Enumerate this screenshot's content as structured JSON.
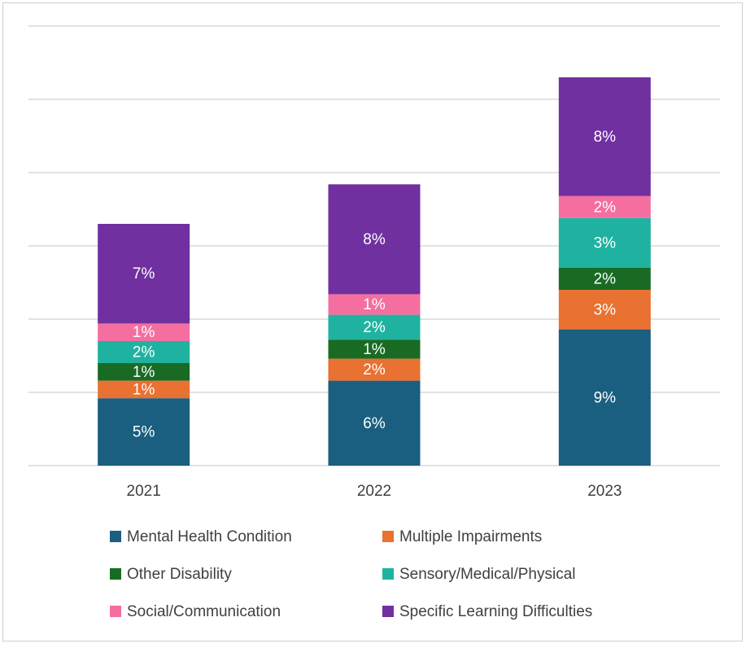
{
  "chart_data": {
    "type": "stacked_bar",
    "categories": [
      "2021",
      "2022",
      "2023"
    ],
    "series": [
      {
        "name": "Mental Health Condition",
        "color": "#1a5e80",
        "values": [
          4.6,
          5.8,
          9.3
        ],
        "value_labels": [
          "5%",
          "6%",
          "9%"
        ]
      },
      {
        "name": "Multiple Impairments",
        "color": "#e97132",
        "values": [
          1.2,
          1.5,
          2.7
        ],
        "value_labels": [
          "1%",
          "2%",
          "3%"
        ]
      },
      {
        "name": "Other Disability",
        "color": "#196b24",
        "values": [
          1.2,
          1.3,
          1.5
        ],
        "value_labels": [
          "1%",
          "1%",
          "2%"
        ]
      },
      {
        "name": "Sensory/Medical/Physical",
        "color": "#20b2a0",
        "values": [
          1.5,
          1.7,
          3.4
        ],
        "value_labels": [
          "2%",
          "2%",
          "3%"
        ]
      },
      {
        "name": "Social/Communication",
        "color": "#f46fa0",
        "values": [
          1.2,
          1.4,
          1.5
        ],
        "value_labels": [
          "1%",
          "1%",
          "2%"
        ]
      },
      {
        "name": "Specific Learning Difficulties",
        "color": "#7030a0",
        "values": [
          6.8,
          7.5,
          8.1
        ],
        "value_labels": [
          "7%",
          "8%",
          "8%"
        ]
      }
    ],
    "ylim": [
      0,
      30
    ],
    "yticks": [
      0,
      5,
      10,
      15,
      20,
      25,
      30
    ],
    "grid": true,
    "legend": "bottom"
  }
}
